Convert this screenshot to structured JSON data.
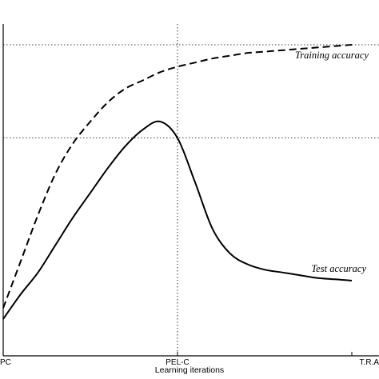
{
  "chart_data": {
    "type": "line",
    "title": "",
    "xlabel": "Learning iterations",
    "ylabel": "",
    "x": [
      0,
      1,
      2,
      3,
      4,
      5,
      6,
      7,
      8,
      9,
      10,
      11,
      12,
      13,
      14,
      15,
      16,
      17,
      18,
      19,
      20
    ],
    "x_tick_labels": [
      {
        "x": 0,
        "label": "PC"
      },
      {
        "x": 10,
        "label": "PEL-C"
      },
      {
        "x": 20,
        "label": "T.R.A"
      }
    ],
    "xlim": [
      0,
      20
    ],
    "ylim": [
      0,
      1
    ],
    "grid": "dotted lines at PEL-C and at two accuracy levels",
    "series": [
      {
        "name": "Training accuracy",
        "style": "dashed",
        "values": [
          0.04,
          0.21,
          0.38,
          0.53,
          0.64,
          0.72,
          0.79,
          0.84,
          0.87,
          0.9,
          0.92,
          0.935,
          0.95,
          0.96,
          0.97,
          0.975,
          0.98,
          0.985,
          0.99,
          0.995,
          1.0
        ]
      },
      {
        "name": "Test accuracy",
        "style": "solid",
        "values": [
          0.0,
          0.09,
          0.17,
          0.27,
          0.37,
          0.46,
          0.55,
          0.63,
          0.69,
          0.72,
          0.66,
          0.5,
          0.33,
          0.24,
          0.2,
          0.18,
          0.17,
          0.16,
          0.15,
          0.145,
          0.14
        ]
      }
    ],
    "reference_lines": {
      "x": [
        10
      ],
      "y": [
        0.66,
        1.0
      ]
    },
    "annotations": [
      {
        "series": 0,
        "text": "Training accuracy"
      },
      {
        "series": 1,
        "text": "Test accuracy"
      }
    ]
  }
}
